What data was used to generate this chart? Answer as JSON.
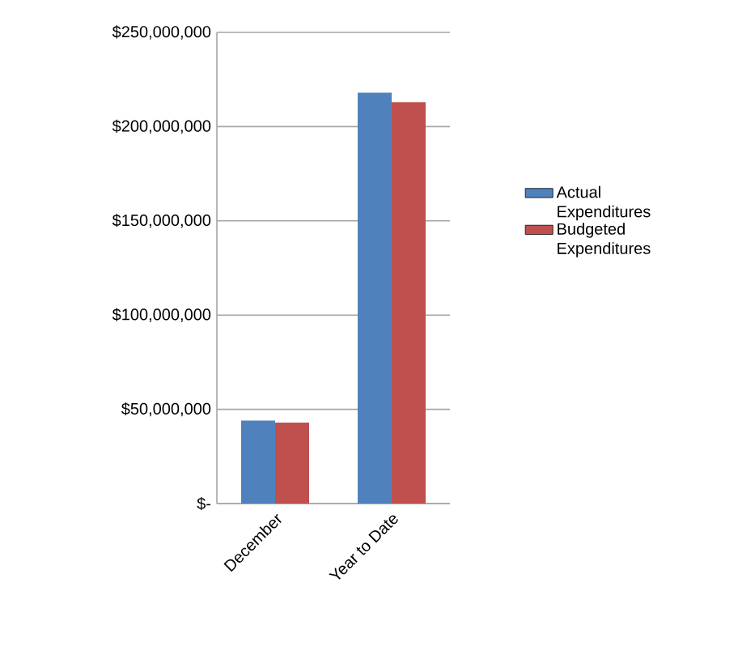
{
  "chart_data": {
    "type": "bar",
    "categories": [
      "December",
      "Year to Date"
    ],
    "series": [
      {
        "name": "Actual Expenditures",
        "color": "#4f81bd",
        "values": [
          44000000,
          218000000
        ]
      },
      {
        "name": "Budgeted Expenditures",
        "color": "#c0504d",
        "values": [
          43000000,
          213000000
        ]
      }
    ],
    "ylim": [
      0,
      250000000
    ],
    "yticks": [
      {
        "value": 0,
        "label": "$-"
      },
      {
        "value": 50000000,
        "label": "$50,000,000"
      },
      {
        "value": 100000000,
        "label": "$100,000,000"
      },
      {
        "value": 150000000,
        "label": "$150,000,000"
      },
      {
        "value": 200000000,
        "label": "$200,000,000"
      },
      {
        "value": 250000000,
        "label": "$250,000,000"
      }
    ],
    "grid": "y",
    "legend": "right"
  }
}
